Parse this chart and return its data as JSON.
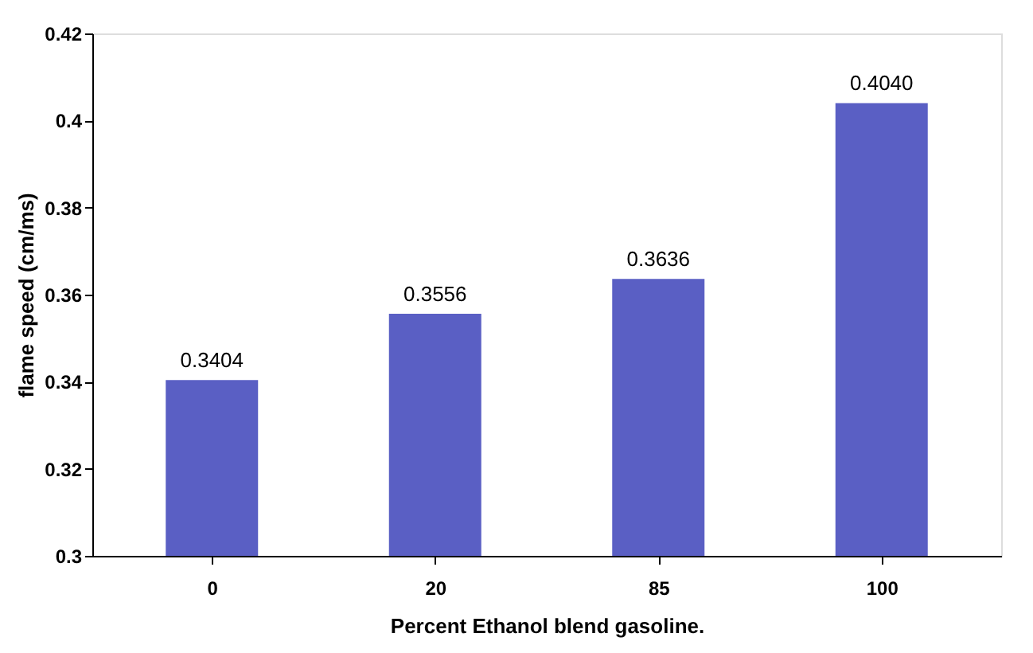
{
  "chart_data": {
    "type": "bar",
    "xlabel": "Percent Ethanol blend gasoline.",
    "ylabel": "flame speed (cm/ms)",
    "categories": [
      "0",
      "20",
      "85",
      "100"
    ],
    "values": [
      0.3404,
      0.3556,
      0.3636,
      0.404
    ],
    "value_labels": [
      "0.3404",
      "0.3556",
      "0.3636",
      "0.4040"
    ],
    "color": "#5a5fc4",
    "ylim": [
      0.3,
      0.42
    ],
    "yticks": [
      0.3,
      0.32,
      0.34,
      0.36,
      0.38,
      0.4,
      0.42
    ],
    "grid": false
  }
}
